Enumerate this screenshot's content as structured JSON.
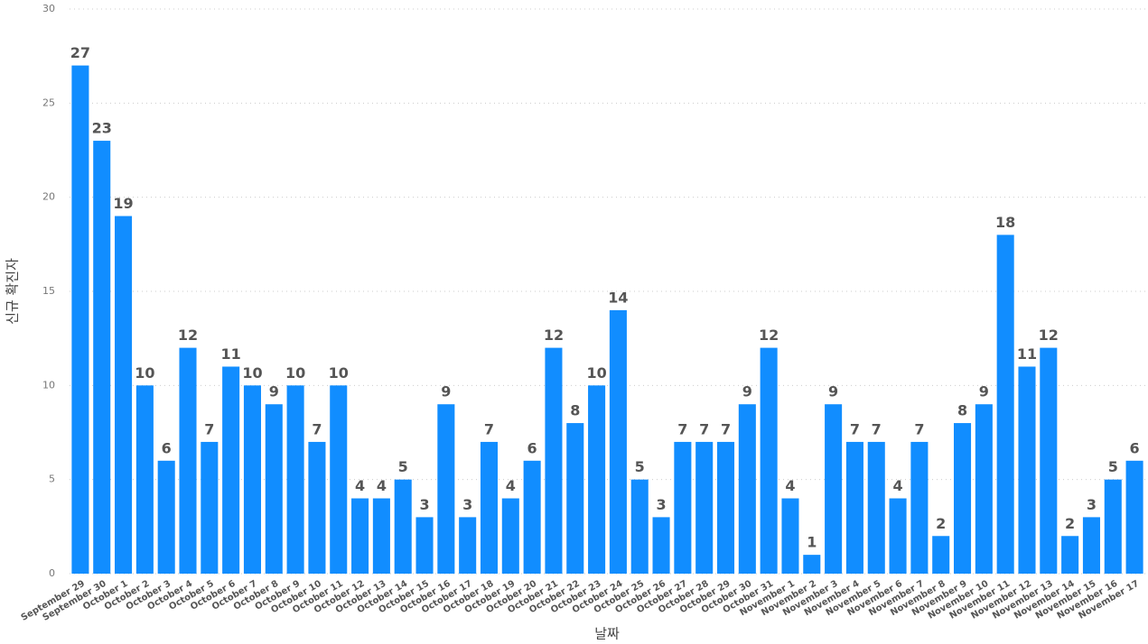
{
  "chart_data": {
    "type": "bar",
    "x_label": "날짜",
    "y_label": "신규 확진자",
    "categories": [
      "September 29",
      "September 30",
      "October 1",
      "October 2",
      "October 3",
      "October 4",
      "October 5",
      "October 6",
      "October 7",
      "October 8",
      "October 9",
      "October 10",
      "October 11",
      "October 12",
      "October 13",
      "October 14",
      "October 15",
      "October 16",
      "October 17",
      "October 18",
      "October 19",
      "October 20",
      "October 21",
      "October 22",
      "October 23",
      "October 24",
      "October 25",
      "October 26",
      "October 27",
      "October 28",
      "October 29",
      "October 30",
      "October 31",
      "November 1",
      "November 2",
      "November 3",
      "November 4",
      "November 5",
      "November 6",
      "November 7",
      "November 8",
      "November 9",
      "November 10",
      "November 11",
      "November 12",
      "November 13",
      "November 14",
      "November 15",
      "November 16",
      "November 17"
    ],
    "values": [
      27,
      23,
      19,
      10,
      6,
      12,
      7,
      11,
      10,
      9,
      10,
      7,
      10,
      4,
      4,
      5,
      3,
      9,
      3,
      7,
      4,
      6,
      12,
      8,
      10,
      14,
      5,
      3,
      7,
      7,
      7,
      9,
      12,
      4,
      1,
      9,
      7,
      7,
      4,
      7,
      2,
      8,
      9,
      18,
      11,
      12,
      2,
      3,
      5,
      6
    ],
    "color": "#118dff",
    "ylim": [
      0,
      30
    ],
    "yticks": [
      0,
      5,
      10,
      15,
      20,
      25,
      30
    ],
    "grid": true
  }
}
